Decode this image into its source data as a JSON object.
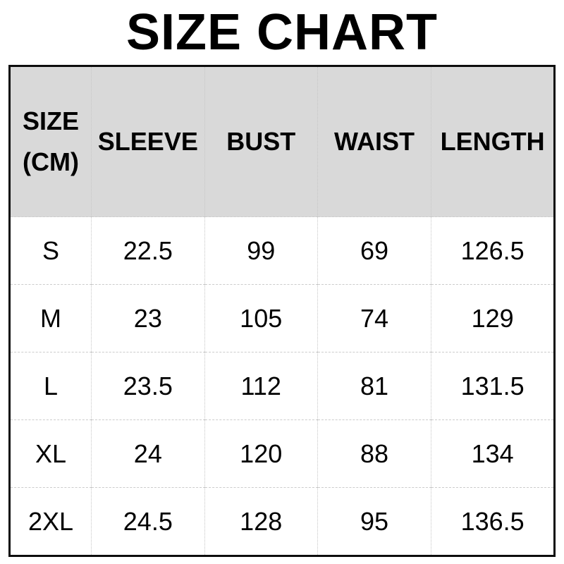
{
  "page": {
    "title": "SIZE CHART"
  },
  "colors": {
    "header_background": "#d9d9d9",
    "outer_border": "#0d0d0d",
    "grid_line": "#c6c6c6",
    "text": "#000000",
    "page_background": "#ffffff"
  },
  "table": {
    "header_col1": {
      "line1": "SIZE",
      "line2": "(CM)"
    },
    "headers": [
      "SIZE (CM)",
      "SLEEVE",
      "BUST",
      "WAIST",
      "LENGTH"
    ],
    "rows": [
      {
        "size": "S",
        "sleeve": "22.5",
        "bust": "99",
        "waist": "69",
        "length": "126.5"
      },
      {
        "size": "M",
        "sleeve": "23",
        "bust": "105",
        "waist": "74",
        "length": "129"
      },
      {
        "size": "L",
        "sleeve": "23.5",
        "bust": "112",
        "waist": "81",
        "length": "131.5"
      },
      {
        "size": "XL",
        "sleeve": "24",
        "bust": "120",
        "waist": "88",
        "length": "134"
      },
      {
        "size": "2XL",
        "sleeve": "24.5",
        "bust": "128",
        "waist": "95",
        "length": "136.5"
      }
    ]
  },
  "chart_data": {
    "type": "table",
    "title": "SIZE CHART",
    "unit": "CM",
    "columns": [
      "SIZE (CM)",
      "SLEEVE",
      "BUST",
      "WAIST",
      "LENGTH"
    ],
    "rows": [
      [
        "S",
        22.5,
        99,
        69,
        126.5
      ],
      [
        "M",
        23,
        105,
        74,
        129
      ],
      [
        "L",
        23.5,
        112,
        81,
        131.5
      ],
      [
        "XL",
        24,
        120,
        88,
        134
      ],
      [
        "2XL",
        24.5,
        128,
        95,
        136.5
      ]
    ]
  }
}
